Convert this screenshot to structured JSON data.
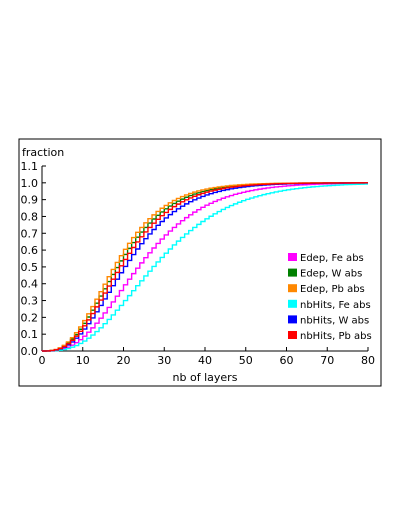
{
  "chart_data": {
    "type": "line",
    "style": "step",
    "title": "",
    "xlabel": "nb of layers",
    "ylabel": "fraction",
    "xlim": [
      0,
      80
    ],
    "ylim": [
      0,
      1.1
    ],
    "xticks": [
      0,
      10,
      20,
      30,
      40,
      50,
      60,
      70,
      80
    ],
    "yticks": [
      0.0,
      0.1,
      0.2,
      0.3,
      0.4,
      0.5,
      0.6,
      0.7,
      0.8,
      0.9,
      1.0,
      1.1
    ],
    "grid": false,
    "legend_position": "bottom-right",
    "series": [
      {
        "name": "Edep, Fe abs",
        "color": "#ff00ff",
        "scale": 6.6,
        "k": 2.0
      },
      {
        "name": "Edep, W abs",
        "color": "#008000",
        "scale": 5.2,
        "k": 1.8
      },
      {
        "name": "Edep, Pb abs",
        "color": "#ff8800",
        "scale": 5.0,
        "k": 1.75
      },
      {
        "name": "nbHits, Fe abs",
        "color": "#00ffff",
        "scale": 7.6,
        "k": 2.1
      },
      {
        "name": "nbHits, W abs",
        "color": "#0000ff",
        "scale": 5.7,
        "k": 1.85
      },
      {
        "name": "nbHits, Pb abs",
        "color": "#ff0000",
        "scale": 5.4,
        "k": 1.8
      }
    ]
  }
}
